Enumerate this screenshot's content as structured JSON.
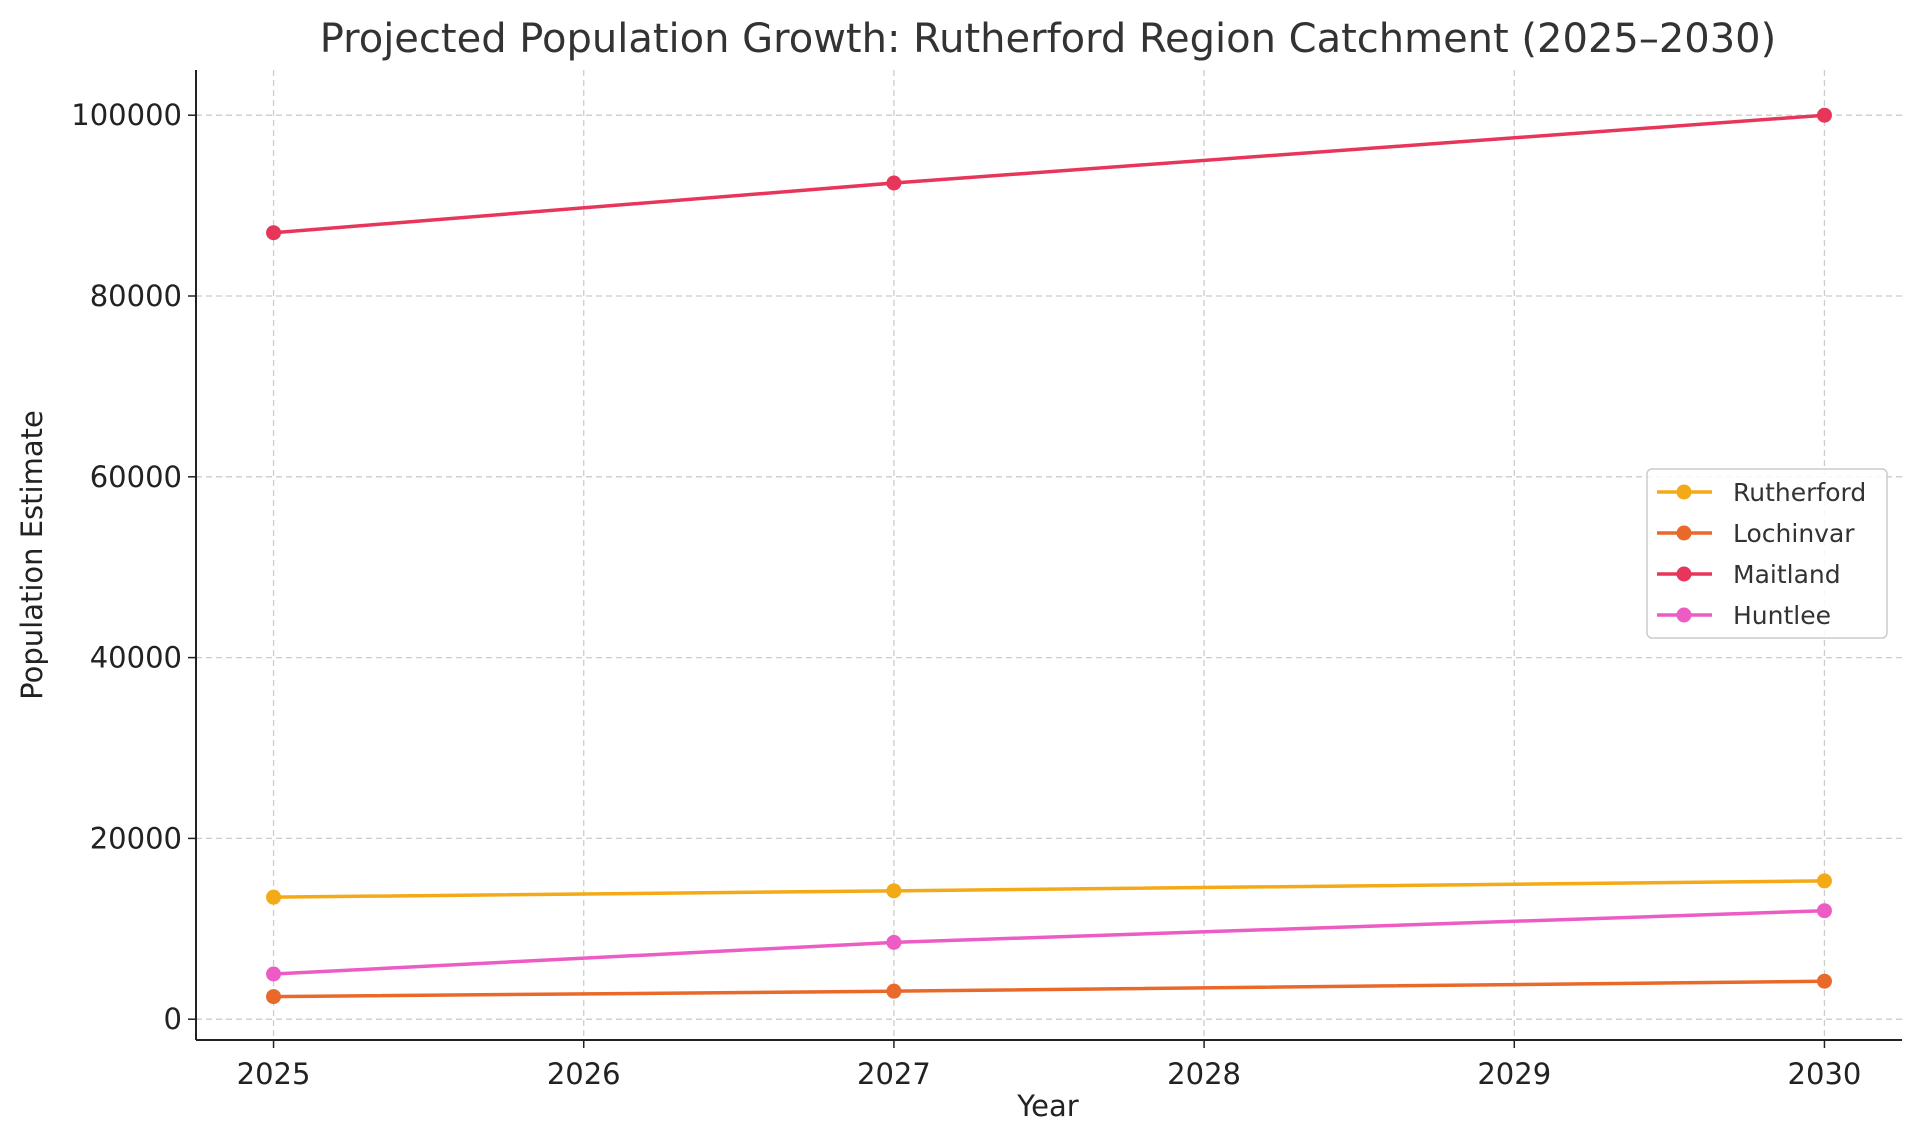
{
  "chart_data": {
    "type": "line",
    "title": "Projected Population Growth: Rutherford Region Catchment (2025–2030)",
    "xlabel": "Year",
    "ylabel": "Population Estimate",
    "x": [
      2025,
      2027,
      2030
    ],
    "xticks": [
      "2025",
      "2026",
      "2027",
      "2028",
      "2029",
      "2030"
    ],
    "xtick_values": [
      2025,
      2026,
      2027,
      2028,
      2029,
      2030
    ],
    "yticks": [
      "0",
      "20000",
      "40000",
      "60000",
      "80000",
      "100000"
    ],
    "ytick_values": [
      0,
      20000,
      40000,
      60000,
      80000,
      100000
    ],
    "xlim": [
      2024.75,
      2030.25
    ],
    "ylim": [
      -2300,
      105000
    ],
    "grid": true,
    "legend_position": "center-right",
    "series": [
      {
        "name": "Rutherford",
        "color": "#f4aa16",
        "values": [
          13500,
          14200,
          15300
        ]
      },
      {
        "name": "Lochinvar",
        "color": "#e8692a",
        "values": [
          2500,
          3100,
          4200
        ]
      },
      {
        "name": "Maitland",
        "color": "#e8365a",
        "values": [
          87000,
          92500,
          100000
        ]
      },
      {
        "name": "Huntlee",
        "color": "#ec5cc4",
        "values": [
          5000,
          8500,
          12000
        ]
      }
    ]
  }
}
